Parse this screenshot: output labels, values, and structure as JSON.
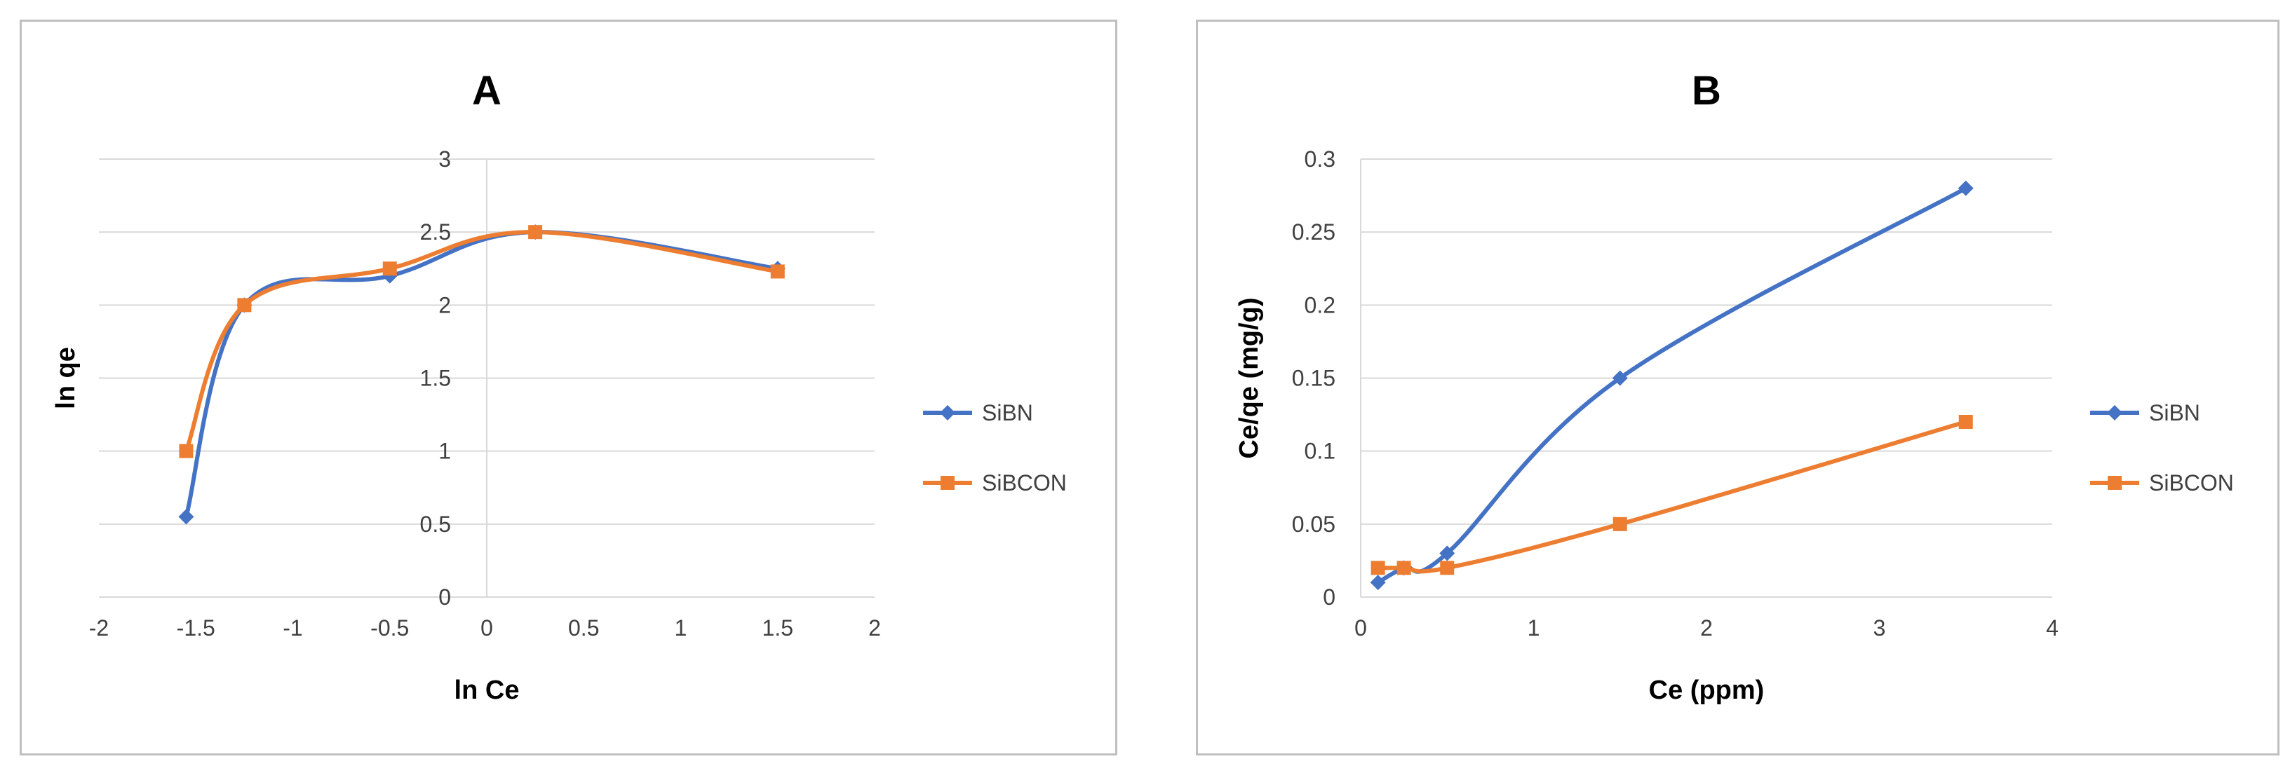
{
  "chart_data": [
    {
      "type": "line",
      "title": "A",
      "xlabel": "ln Ce",
      "ylabel": "ln qe",
      "xlim": [
        -2,
        2
      ],
      "ylim": [
        0,
        3
      ],
      "xticks": [
        -2,
        -1.5,
        -1,
        -0.5,
        0,
        0.5,
        1,
        1.5,
        2
      ],
      "yticks": [
        0,
        0.5,
        1,
        1.5,
        2,
        2.5,
        3
      ],
      "grid": "horizontal",
      "legend_position": "right",
      "series": [
        {
          "name": "SiBN",
          "color": "#4472c4",
          "marker": "diamond",
          "x": [
            -1.55,
            -1.25,
            -0.5,
            0.25,
            1.5
          ],
          "y": [
            0.55,
            2.0,
            2.2,
            2.5,
            2.25
          ]
        },
        {
          "name": "SiBCON",
          "color": "#ed7d31",
          "marker": "square",
          "x": [
            -1.55,
            -1.25,
            -0.5,
            0.25,
            1.5
          ],
          "y": [
            1.0,
            2.0,
            2.25,
            2.5,
            2.23
          ]
        }
      ]
    },
    {
      "type": "line",
      "title": "B",
      "xlabel": "Ce (ppm)",
      "ylabel": "Ce/qe (mg/g)",
      "xlim": [
        0,
        4
      ],
      "ylim": [
        0,
        0.3
      ],
      "xticks": [
        0,
        1,
        2,
        3,
        4
      ],
      "yticks": [
        0,
        0.05,
        0.1,
        0.15,
        0.2,
        0.25,
        0.3
      ],
      "grid": "horizontal",
      "legend_position": "right",
      "series": [
        {
          "name": "SiBN",
          "color": "#4472c4",
          "marker": "diamond",
          "x": [
            0.1,
            0.25,
            0.5,
            1.5,
            3.5
          ],
          "y": [
            0.01,
            0.02,
            0.03,
            0.15,
            0.28
          ]
        },
        {
          "name": "SiBCON",
          "color": "#ed7d31",
          "marker": "square",
          "x": [
            0.1,
            0.25,
            0.5,
            1.5,
            3.5
          ],
          "y": [
            0.02,
            0.02,
            0.02,
            0.05,
            0.12
          ]
        }
      ]
    }
  ]
}
